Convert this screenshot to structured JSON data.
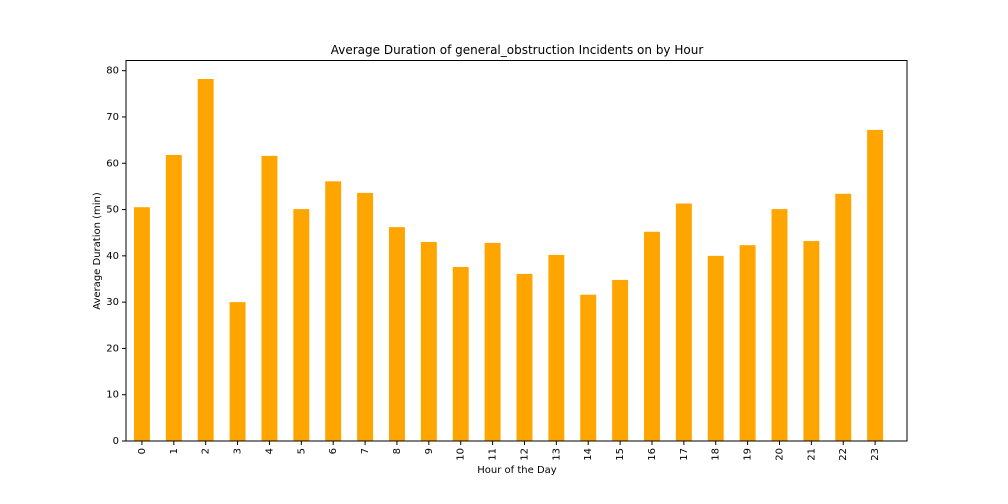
{
  "chart_data": {
    "type": "bar",
    "title": "Average Duration of general_obstruction Incidents on    by Hour",
    "xlabel": "Hour of the Day",
    "ylabel": "Average Duration (min)",
    "categories": [
      "0",
      "1",
      "2",
      "3",
      "4",
      "5",
      "6",
      "7",
      "8",
      "9",
      "10",
      "11",
      "12",
      "13",
      "14",
      "15",
      "16",
      "17",
      "18",
      "19",
      "20",
      "21",
      "22",
      "23"
    ],
    "values": [
      50.5,
      61.8,
      78.2,
      30.0,
      61.6,
      50.1,
      56.1,
      53.6,
      46.2,
      43.0,
      37.6,
      42.8,
      36.1,
      40.2,
      31.6,
      34.8,
      45.2,
      51.3,
      40.0,
      42.3,
      50.1,
      43.2,
      53.4,
      67.2
    ],
    "ylim": [
      0,
      82.2
    ],
    "yticks": [
      0,
      10,
      20,
      30,
      40,
      50,
      60,
      70,
      80
    ],
    "bar_color": "#ffa500",
    "grid": false,
    "legend": false
  }
}
